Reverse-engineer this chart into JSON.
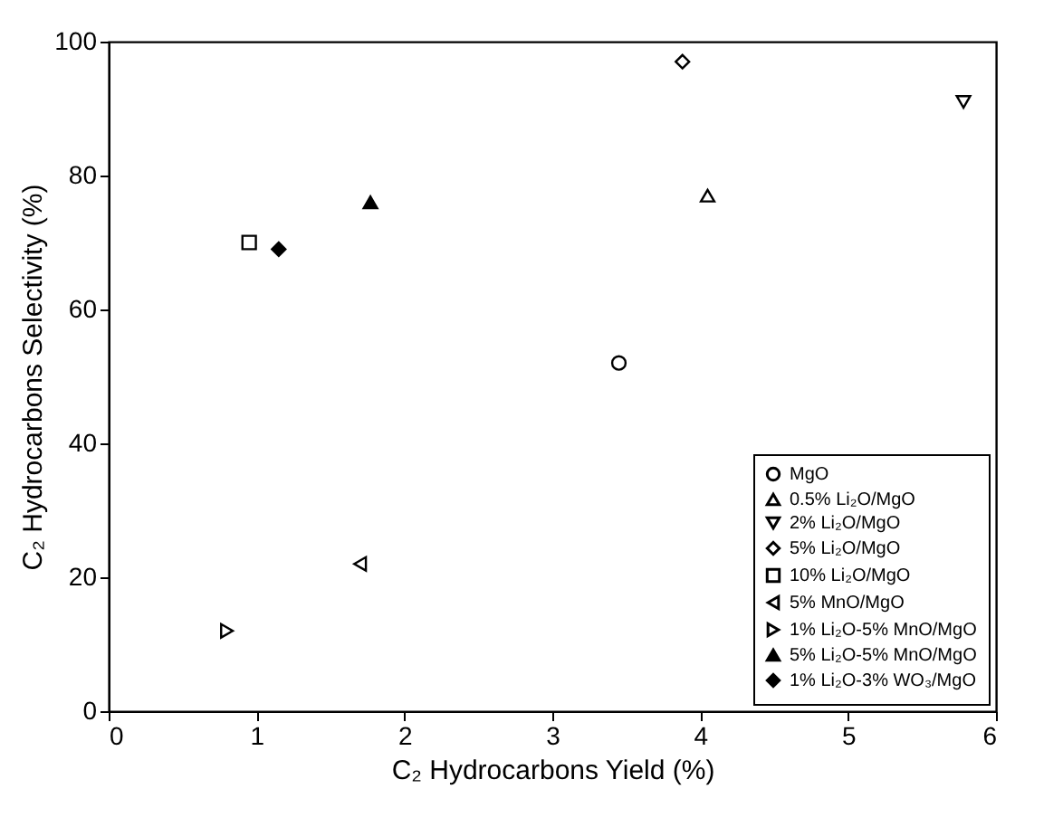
{
  "chart_data": {
    "type": "scatter",
    "xlabel": "C₂ Hydrocarbons Yield (%)",
    "ylabel": "C₂ Hydrocarbons Selectivity (%)",
    "xlim": [
      0,
      6
    ],
    "xticks": [
      0,
      1,
      2,
      3,
      4,
      5,
      6
    ],
    "ylim": [
      0,
      100
    ],
    "yticks": [
      0,
      20,
      40,
      60,
      80,
      100
    ],
    "grid": false,
    "legend": "bottom right",
    "series": [
      {
        "name": "MgO",
        "color": "#000000",
        "marker": "circle",
        "x": [
          3.45
        ],
        "values": [
          52
        ]
      },
      {
        "name": "0.5% Li₂O/MgO",
        "color": "#000000",
        "marker": "triangle",
        "x": [
          4.05
        ],
        "values": [
          77
        ]
      },
      {
        "name": "2% Li₂O/MgO",
        "color": "#000000",
        "marker": "triangle-down",
        "x": [
          5.78
        ],
        "values": [
          91
        ]
      },
      {
        "name": "5% Li₂O/MgO",
        "color": "#000000",
        "marker": "diamond",
        "x": [
          3.88
        ],
        "values": [
          97
        ]
      },
      {
        "name": "10% Li₂O/MgO",
        "color": "#000000",
        "marker": "square",
        "x": [
          0.95
        ],
        "values": [
          70
        ]
      },
      {
        "name": "5% MnO/MgO",
        "color": "#000000",
        "marker": "triangle-left",
        "x": [
          1.7
        ],
        "values": [
          22
        ]
      },
      {
        "name": "1% Li₂O-5% MnO/MgO",
        "color": "#000000",
        "marker": "triangle-right",
        "x": [
          0.8
        ],
        "values": [
          12
        ]
      },
      {
        "name": "5% Li₂O-5% MnO/MgO",
        "color": "#000000",
        "marker": "triangle-filled",
        "x": [
          1.77
        ],
        "values": [
          76
        ]
      },
      {
        "name": "1% Li₂O-3% WO₃/MgO",
        "color": "#000000",
        "marker": "diamond-filled",
        "x": [
          1.15
        ],
        "values": [
          69
        ]
      }
    ]
  }
}
